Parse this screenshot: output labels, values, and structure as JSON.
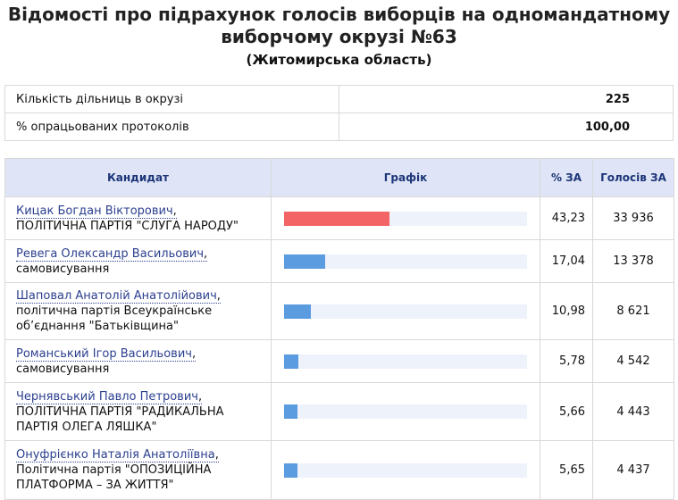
{
  "header": {
    "title": "Відомості про підрахунок голосів виборців на одномандатному виборчому окрузі №63",
    "region": "(Житомирська область)"
  },
  "summary": {
    "rows": [
      [
        "Кількість дільниць в окрузі",
        "225"
      ],
      [
        "% опрацьованих протоколів",
        "100,00"
      ]
    ]
  },
  "table": {
    "columns": [
      "Кандидат",
      "Графік",
      "% ЗА",
      "Голосів ЗА"
    ],
    "bar_range": [
      0,
      100
    ],
    "rows": [
      {
        "name": "Кицак Богдан Вікторович",
        "party": "ПОЛІТИЧНА ПАРТІЯ \"СЛУГА НАРОДУ\"",
        "percent": {
          "value": 43.23,
          "label": "43,23"
        },
        "votes": "33 936",
        "color": "#f26466"
      },
      {
        "name": "Ревега Олександр Васильович",
        "party": "самовисування",
        "percent": {
          "value": 17.04,
          "label": "17,04"
        },
        "votes": "13 378",
        "color": "#5b9be0"
      },
      {
        "name": "Шаповал Анатолій Анатолійович",
        "party": "політична партія Всеукраїнське об’єднання \"Батьківщина\"",
        "percent": {
          "value": 10.98,
          "label": "10,98"
        },
        "votes": "8 621",
        "color": "#5b9be0"
      },
      {
        "name": "Романський Ігор Васильович",
        "party": "самовисування",
        "percent": {
          "value": 5.78,
          "label": "5,78"
        },
        "votes": "4 542",
        "color": "#5b9be0"
      },
      {
        "name": "Чернявський Павло Петрович",
        "party": "ПОЛІТИЧНА ПАРТІЯ \"РАДИКАЛЬНА ПАРТІЯ ОЛЕГА ЛЯШКА\"",
        "percent": {
          "value": 5.66,
          "label": "5,66"
        },
        "votes": "4 443",
        "color": "#5b9be0"
      },
      {
        "name": "Онуфрієнко Наталія Анатоліївна",
        "party": "Політична партія \"ОПОЗИЦІЙНА ПЛАТФОРМА – ЗА ЖИТТЯ\"",
        "percent": {
          "value": 5.65,
          "label": "5,65"
        },
        "votes": "4 437",
        "color": "#5b9be0"
      }
    ]
  }
}
